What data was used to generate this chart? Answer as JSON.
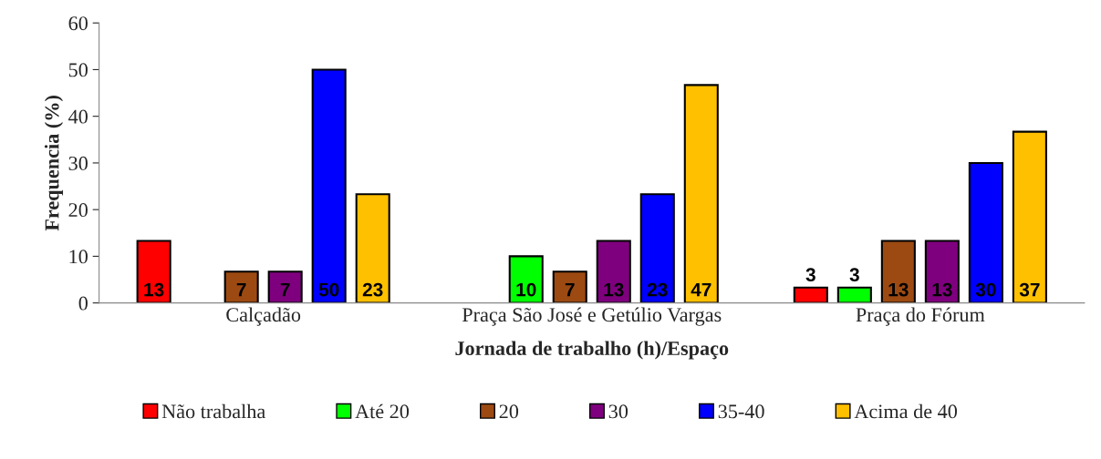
{
  "chart_data": {
    "type": "bar",
    "xlabel": "Jornada de trabalho (h)/Espaço",
    "ylabel": "Frequencia (%)",
    "categories": [
      "Calçadão",
      "Praça São José e Getúlio Vargas",
      "Praça do Fórum"
    ],
    "series": [
      {
        "name": "Não trabalha",
        "color": "#ff0000",
        "values": [
          13.3,
          null,
          3.3
        ],
        "value_labels": [
          "13",
          null,
          "3"
        ]
      },
      {
        "name": "Até 20",
        "color": "#00ff00",
        "values": [
          null,
          10,
          3.3
        ],
        "value_labels": [
          null,
          "10",
          "3"
        ]
      },
      {
        "name": "20",
        "color": "#9c4a12",
        "values": [
          6.7,
          6.7,
          13.3
        ],
        "value_labels": [
          "7",
          "7",
          "13"
        ]
      },
      {
        "name": "30",
        "color": "#7f007f",
        "values": [
          6.7,
          13.3,
          13.3
        ],
        "value_labels": [
          "7",
          "13",
          "13"
        ]
      },
      {
        "name": "35-40",
        "color": "#0000ff",
        "values": [
          50,
          23.3,
          30
        ],
        "value_labels": [
          "50",
          "23",
          "30"
        ]
      },
      {
        "name": "Acima de 40",
        "color": "#ffc000",
        "values": [
          23.3,
          46.7,
          36.7
        ],
        "value_labels": [
          "23",
          "47",
          "37"
        ]
      }
    ],
    "ylim": [
      0,
      60
    ],
    "yticks": [
      0,
      10,
      20,
      30,
      40,
      50,
      60
    ],
    "grid": false,
    "legend": "bottom"
  }
}
